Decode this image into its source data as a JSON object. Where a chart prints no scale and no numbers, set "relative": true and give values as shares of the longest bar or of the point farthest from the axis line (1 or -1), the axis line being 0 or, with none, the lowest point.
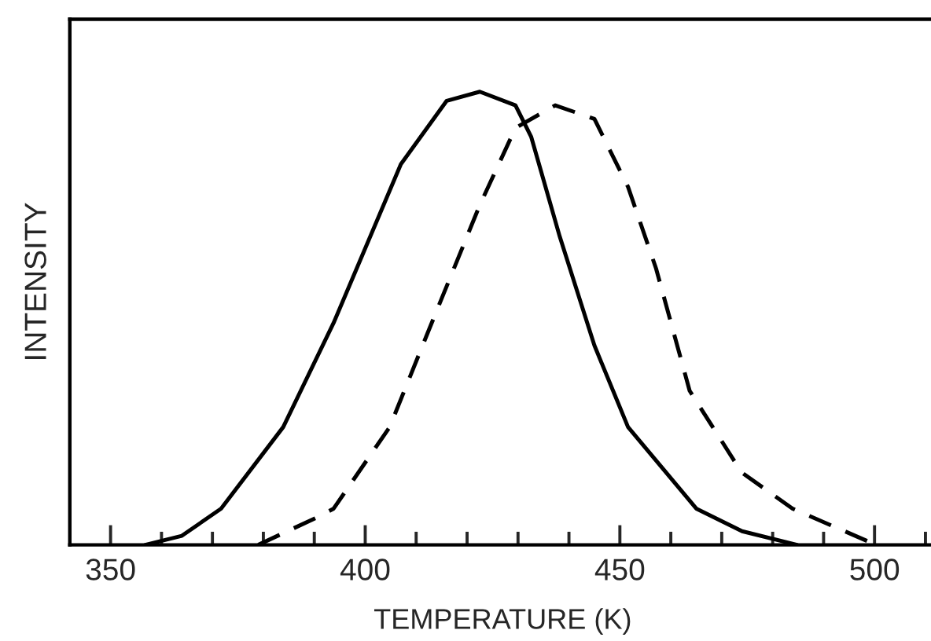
{
  "chart_data": {
    "type": "line",
    "xlabel": "TEMPERATURE (K)",
    "ylabel": "INTENSITY",
    "relative": true,
    "xlim": [
      342,
      512
    ],
    "xticks": [
      350,
      {
        "value": 360,
        "label": null
      },
      {
        "value": 370,
        "label": null
      },
      {
        "value": 380,
        "label": null
      },
      {
        "value": 390,
        "label": null
      },
      400,
      {
        "value": 410,
        "label": null
      },
      {
        "value": 420,
        "label": null
      },
      {
        "value": 430,
        "label": null
      },
      {
        "value": 440,
        "label": null
      },
      450,
      {
        "value": 460,
        "label": null
      },
      {
        "value": 470,
        "label": null
      },
      {
        "value": 480,
        "label": null
      },
      {
        "value": 490,
        "label": null
      },
      500,
      {
        "value": 510,
        "label": null
      }
    ],
    "tick_labels": "x",
    "grid": false,
    "legend": false,
    "marker": "none",
    "series": [
      {
        "color": "#000000",
        "line_style": "solid",
        "x": [
          356.8,
          364,
          371.7,
          383.9,
          393.8,
          407,
          416,
          422.5,
          429.5,
          432.6,
          438.2,
          445,
          451.6,
          465,
          474,
          484.8
        ],
        "values": [
          0,
          0.02,
          0.08,
          0.26,
          0.49,
          0.84,
          0.98,
          1.0,
          0.97,
          0.9,
          0.68,
          0.44,
          0.26,
          0.08,
          0.03,
          0
        ]
      },
      {
        "color": "#000000",
        "line_style": "dashed",
        "x": [
          379,
          390.4,
          393.8,
          404.8,
          412.7,
          422.5,
          429.5,
          437.3,
          445,
          451.6,
          457.1,
          463.7,
          473.9,
          483.9,
          500.3
        ],
        "values": [
          0,
          0.06,
          0.08,
          0.26,
          0.48,
          0.75,
          0.92,
          0.97,
          0.94,
          0.79,
          0.61,
          0.34,
          0.16,
          0.08,
          0
        ]
      }
    ]
  }
}
